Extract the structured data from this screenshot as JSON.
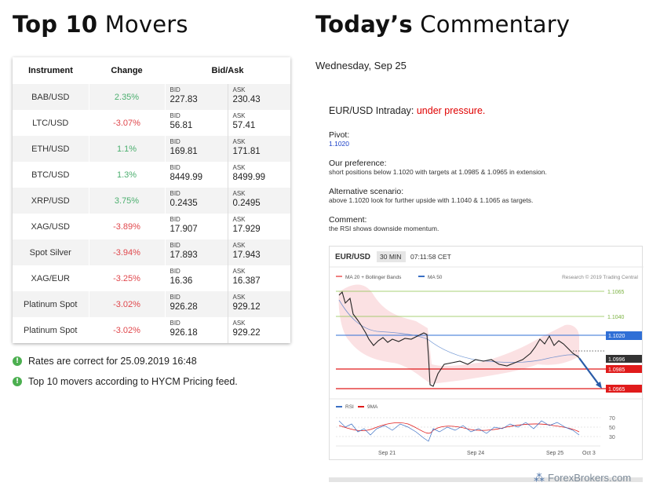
{
  "left_heading": {
    "bold": "Top 10",
    "light": "Movers"
  },
  "right_heading": {
    "bold": "Today’s",
    "light": "Commentary"
  },
  "table": {
    "headers": [
      "Instrument",
      "Change",
      "Bid/Ask"
    ],
    "bid_label": "BID",
    "ask_label": "ASK",
    "rows": [
      {
        "instrument": "BAB/USD",
        "change": "2.35%",
        "dir": "pos",
        "bid": "227.83",
        "ask": "230.43"
      },
      {
        "instrument": "LTC/USD",
        "change": "-3.07%",
        "dir": "neg",
        "bid": "56.81",
        "ask": "57.41"
      },
      {
        "instrument": "ETH/USD",
        "change": "1.1%",
        "dir": "pos",
        "bid": "169.81",
        "ask": "171.81"
      },
      {
        "instrument": "BTC/USD",
        "change": "1.3%",
        "dir": "pos",
        "bid": "8449.99",
        "ask": "8499.99"
      },
      {
        "instrument": "XRP/USD",
        "change": "3.75%",
        "dir": "pos",
        "bid": "0.2435",
        "ask": "0.2495"
      },
      {
        "instrument": "XAG/USD",
        "change": "-3.89%",
        "dir": "neg",
        "bid": "17.907",
        "ask": "17.929"
      },
      {
        "instrument": "Spot Silver",
        "change": "-3.94%",
        "dir": "neg",
        "bid": "17.893",
        "ask": "17.943"
      },
      {
        "instrument": "XAG/EUR",
        "change": "-3.25%",
        "dir": "neg",
        "bid": "16.36",
        "ask": "16.387"
      },
      {
        "instrument": "Platinum Spot",
        "change": "-3.02%",
        "dir": "neg",
        "bid": "926.28",
        "ask": "929.12"
      },
      {
        "instrument": "Platinum Spot",
        "change": "-3.02%",
        "dir": "neg",
        "bid": "926.18",
        "ask": "929.22"
      }
    ]
  },
  "notes": [
    {
      "icon": "exclamation-icon",
      "text": "Rates are correct for  25.09.2019 16:48"
    },
    {
      "icon": "exclamation-icon",
      "text": "Top 10 movers according to HYCM Pricing feed."
    }
  ],
  "commentary": {
    "date": "Wednesday, Sep 25",
    "title_prefix": "EUR/USD Intraday: ",
    "title_highlight": "under pressure.",
    "pivot_label": "Pivot:",
    "pivot_value": "1.1020",
    "preference_label": "Our preference:",
    "preference_text": "short positions below 1.1020 with targets at 1.0985 & 1.0965 in extension.",
    "alternative_label": "Alternative scenario:",
    "alternative_text": "above 1.1020 look for further upside with 1.1040 & 1.1065 as targets.",
    "comment_label": "Comment:",
    "comment_text": "the RSI shows downside momentum."
  },
  "chart": {
    "symbol": "EUR/USD",
    "timeframe": "30 MIN",
    "time": "07:11:58 CET",
    "legend_ma20": "MA 20 + Bollinger Bands",
    "legend_ma50": "MA 50",
    "credit": "Research © 2019 Trading Central",
    "levels": [
      {
        "label": "1.1065",
        "style": "green-line"
      },
      {
        "label": "1.1040",
        "style": "green-line"
      },
      {
        "label": "1.1020",
        "style": "blue-tag"
      },
      {
        "label": "1.0996",
        "style": "dark-tag"
      },
      {
        "label": "1.0985",
        "style": "red-tag"
      },
      {
        "label": "1.0965",
        "style": "red-tag"
      }
    ],
    "rsi_legend": "RSI",
    "rsi_ma_legend": "9MA",
    "rsi_levels": [
      "70",
      "50",
      "30"
    ],
    "x_labels": [
      "Sep 21",
      "Sep 24",
      "Sep 25",
      "Oct 3"
    ],
    "colors": {
      "ma20": "#f08080",
      "ma50": "#3a6fc4",
      "green": "#8bc34a",
      "blue": "#2f6fd6",
      "red": "#e01b1b",
      "dark": "#333333"
    }
  },
  "logo": {
    "text": "ForexBrokers.com",
    "icon": "forexbrokers-logo-icon"
  }
}
